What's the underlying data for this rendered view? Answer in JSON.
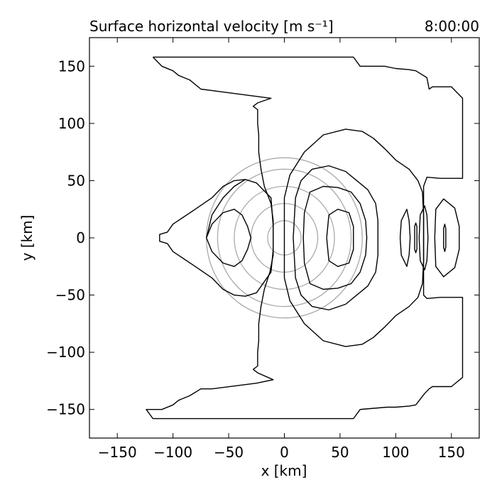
{
  "chart_data": {
    "type": "contour",
    "title_left": "Surface horizontal velocity [m s⁻¹]",
    "title_right": "8:00:00",
    "xlabel": "x [km]",
    "ylabel": "y [km]",
    "xlim": [
      -175,
      175
    ],
    "ylim": [
      -175,
      175
    ],
    "xticks": [
      -150,
      -100,
      -50,
      0,
      50,
      100,
      150
    ],
    "yticks": [
      -150,
      -100,
      -50,
      0,
      50,
      100,
      150
    ],
    "xtick_labels": [
      "−150",
      "−100",
      "−50",
      "0",
      "50",
      "100",
      "150"
    ],
    "ytick_labels": [
      "−150",
      "−100",
      "−50",
      "0",
      "50",
      "100",
      "150"
    ],
    "grid": false,
    "colors": {
      "contour": "#000000",
      "rings": "#aaaaaa",
      "axes": "#000000"
    },
    "rings": {
      "center": [
        0,
        0
      ],
      "radii": [
        15,
        30,
        45,
        60,
        70
      ]
    },
    "contours": [
      {
        "name": "outer",
        "points": [
          [
            -118,
            158
          ],
          [
            62,
            158
          ],
          [
            68,
            150
          ],
          [
            90,
            150
          ],
          [
            100,
            148
          ],
          [
            112,
            147
          ],
          [
            118,
            146
          ],
          [
            128,
            140
          ],
          [
            130,
            130
          ],
          [
            133,
            132
          ],
          [
            150,
            132
          ],
          [
            160,
            122
          ],
          [
            160,
            52
          ],
          [
            140,
            52
          ],
          [
            128,
            53
          ],
          [
            125,
            45
          ],
          [
            125,
            -50
          ],
          [
            128,
            -53
          ],
          [
            140,
            -52
          ],
          [
            160,
            -52
          ],
          [
            160,
            -122
          ],
          [
            150,
            -130
          ],
          [
            133,
            -130
          ],
          [
            130,
            -132
          ],
          [
            126,
            -136
          ],
          [
            118,
            -146
          ],
          [
            112,
            -147
          ],
          [
            100,
            -148
          ],
          [
            92,
            -148
          ],
          [
            68,
            -150
          ],
          [
            62,
            -158
          ],
          [
            -118,
            -158
          ],
          [
            -124,
            -150
          ],
          [
            -110,
            -150
          ],
          [
            -100,
            -146
          ],
          [
            -95,
            -142
          ],
          [
            -85,
            -138
          ],
          [
            -75,
            -132
          ],
          [
            -65,
            -132
          ],
          [
            -25,
            -127
          ],
          [
            -10,
            -124
          ],
          [
            -24,
            -118
          ],
          [
            -28,
            -115
          ],
          [
            -24,
            -112
          ],
          [
            -24,
            -100
          ],
          [
            -23,
            -90
          ],
          [
            -23,
            -75
          ],
          [
            -21,
            -60
          ],
          [
            -18,
            -45
          ],
          [
            -13,
            -30
          ],
          [
            -10,
            -15
          ],
          [
            -10,
            0
          ],
          [
            -10,
            15
          ],
          [
            -12,
            30
          ],
          [
            -18,
            45
          ],
          [
            -21,
            60
          ],
          [
            -23,
            75
          ],
          [
            -23,
            90
          ],
          [
            -24,
            100
          ],
          [
            -24,
            112
          ],
          [
            -28,
            115
          ],
          [
            -24,
            118
          ],
          [
            -12,
            122
          ],
          [
            -75,
            130
          ],
          [
            -85,
            138
          ],
          [
            -95,
            142
          ],
          [
            -100,
            146
          ],
          [
            -110,
            150
          ],
          [
            -118,
            158
          ]
        ]
      },
      {
        "name": "left-outer-lobe",
        "points": [
          [
            -70,
            0
          ],
          [
            -65,
            20
          ],
          [
            -55,
            35
          ],
          [
            -45,
            45
          ],
          [
            -35,
            51
          ],
          [
            -25,
            48
          ],
          [
            -12,
            35
          ],
          [
            -10,
            10
          ],
          [
            -10,
            -10
          ],
          [
            -12,
            -30
          ],
          [
            -25,
            -48
          ],
          [
            -35,
            -51
          ],
          [
            -45,
            -50
          ],
          [
            -55,
            -45
          ],
          [
            -65,
            -35
          ],
          [
            -80,
            -25
          ],
          [
            -100,
            -12
          ],
          [
            -105,
            -5
          ],
          [
            -112,
            -3
          ],
          [
            -112,
            3
          ],
          [
            -105,
            5
          ],
          [
            -100,
            12
          ],
          [
            -80,
            25
          ],
          [
            -65,
            35
          ],
          [
            -55,
            45
          ],
          [
            -45,
            50
          ],
          [
            -35,
            51
          ]
        ]
      },
      {
        "name": "left-inner-lobe",
        "points": [
          [
            -70,
            0
          ],
          [
            -65,
            -12
          ],
          [
            -55,
            -22
          ],
          [
            -45,
            -25
          ],
          [
            -38,
            -20
          ],
          [
            -33,
            -10
          ],
          [
            -30,
            0
          ],
          [
            -33,
            10
          ],
          [
            -38,
            20
          ],
          [
            -45,
            25
          ],
          [
            -55,
            22
          ],
          [
            -65,
            12
          ],
          [
            -70,
            0
          ]
        ]
      },
      {
        "name": "center-right-outer",
        "points": [
          [
            0,
            35
          ],
          [
            5,
            55
          ],
          [
            18,
            75
          ],
          [
            35,
            90
          ],
          [
            55,
            95
          ],
          [
            70,
            93
          ],
          [
            80,
            87
          ],
          [
            90,
            78
          ],
          [
            100,
            68
          ],
          [
            112,
            60
          ],
          [
            120,
            50
          ],
          [
            124,
            40
          ],
          [
            125,
            20
          ],
          [
            125,
            0
          ],
          [
            125,
            -20
          ],
          [
            124,
            -40
          ],
          [
            120,
            -52
          ],
          [
            112,
            -60
          ],
          [
            100,
            -68
          ],
          [
            90,
            -78
          ],
          [
            80,
            -87
          ],
          [
            70,
            -93
          ],
          [
            55,
            -95
          ],
          [
            35,
            -90
          ],
          [
            18,
            -75
          ],
          [
            5,
            -55
          ],
          [
            0,
            -35
          ],
          [
            0,
            0
          ],
          [
            0,
            35
          ]
        ]
      },
      {
        "name": "center-right-mid",
        "points": [
          [
            8,
            0
          ],
          [
            10,
            35
          ],
          [
            15,
            50
          ],
          [
            25,
            60
          ],
          [
            40,
            63
          ],
          [
            55,
            58
          ],
          [
            65,
            50
          ],
          [
            75,
            42
          ],
          [
            82,
            30
          ],
          [
            84,
            15
          ],
          [
            84,
            0
          ],
          [
            84,
            -15
          ],
          [
            82,
            -30
          ],
          [
            75,
            -42
          ],
          [
            65,
            -50
          ],
          [
            55,
            -58
          ],
          [
            40,
            -63
          ],
          [
            25,
            -60
          ],
          [
            15,
            -50
          ],
          [
            10,
            -35
          ],
          [
            8,
            0
          ]
        ]
      },
      {
        "name": "center-right-inner",
        "points": [
          [
            17,
            0
          ],
          [
            18,
            22
          ],
          [
            23,
            40
          ],
          [
            35,
            45
          ],
          [
            48,
            44
          ],
          [
            60,
            40
          ],
          [
            68,
            30
          ],
          [
            73,
            15
          ],
          [
            74,
            0
          ],
          [
            73,
            -15
          ],
          [
            68,
            -30
          ],
          [
            60,
            -40
          ],
          [
            48,
            -44
          ],
          [
            35,
            -45
          ],
          [
            23,
            -40
          ],
          [
            18,
            -22
          ],
          [
            17,
            0
          ]
        ]
      },
      {
        "name": "right-inner-a",
        "points": [
          [
            38,
            0
          ],
          [
            40,
            20
          ],
          [
            48,
            25
          ],
          [
            58,
            22
          ],
          [
            62,
            10
          ],
          [
            62,
            0
          ],
          [
            62,
            -10
          ],
          [
            58,
            -22
          ],
          [
            48,
            -25
          ],
          [
            40,
            -20
          ],
          [
            38,
            0
          ]
        ]
      },
      {
        "name": "right-ring-1",
        "points": [
          [
            104,
            0
          ],
          [
            105,
            15
          ],
          [
            110,
            25
          ],
          [
            112,
            15
          ],
          [
            113,
            0
          ],
          [
            112,
            -15
          ],
          [
            110,
            -25
          ],
          [
            105,
            -15
          ],
          [
            104,
            0
          ]
        ]
      },
      {
        "name": "right-ring-2",
        "points": [
          [
            117,
            0
          ],
          [
            117,
            10
          ],
          [
            118,
            13
          ],
          [
            119,
            10
          ],
          [
            119,
            0
          ],
          [
            119,
            -10
          ],
          [
            118,
            -13
          ],
          [
            117,
            -10
          ],
          [
            117,
            0
          ]
        ]
      },
      {
        "name": "right-ring-3",
        "points": [
          [
            121,
            0
          ],
          [
            122,
            20
          ],
          [
            126,
            28
          ],
          [
            128,
            20
          ],
          [
            129,
            0
          ],
          [
            128,
            -20
          ],
          [
            126,
            -28
          ],
          [
            122,
            -20
          ],
          [
            121,
            0
          ]
        ]
      },
      {
        "name": "far-right-outer",
        "points": [
          [
            135,
            0
          ],
          [
            136,
            25
          ],
          [
            143,
            34
          ],
          [
            153,
            26
          ],
          [
            157,
            10
          ],
          [
            157,
            0
          ],
          [
            157,
            -10
          ],
          [
            153,
            -26
          ],
          [
            143,
            -34
          ],
          [
            136,
            -25
          ],
          [
            135,
            0
          ]
        ]
      },
      {
        "name": "far-right-inner",
        "points": [
          [
            143,
            0
          ],
          [
            143,
            8
          ],
          [
            144,
            12
          ],
          [
            145,
            8
          ],
          [
            145,
            0
          ],
          [
            145,
            -8
          ],
          [
            144,
            -12
          ],
          [
            143,
            -8
          ],
          [
            143,
            0
          ]
        ]
      }
    ]
  }
}
